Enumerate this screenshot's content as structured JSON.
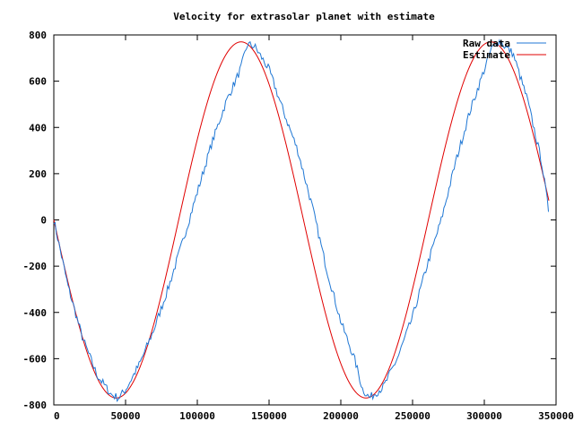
{
  "chart_data": {
    "type": "line",
    "title": "Velocity for extrasolar planet with estimate",
    "xlabel": "",
    "ylabel": "",
    "xlim": [
      0,
      350000
    ],
    "ylim": [
      -800,
      800
    ],
    "x_ticks": [
      0,
      50000,
      100000,
      150000,
      200000,
      250000,
      300000,
      350000
    ],
    "y_ticks": [
      -800,
      -600,
      -400,
      -200,
      0,
      200,
      400,
      600,
      800
    ],
    "grid": false,
    "legend_position": "top-right",
    "series": [
      {
        "name": "Raw data",
        "color": "#1f77d4",
        "x": [
          0,
          10000,
          20000,
          30000,
          40000,
          45000,
          50000,
          60000,
          70000,
          80000,
          90000,
          100000,
          110000,
          120000,
          130000,
          135000,
          140000,
          150000,
          160000,
          170000,
          180000,
          190000,
          200000,
          210000,
          215000,
          220000,
          230000,
          240000,
          250000,
          260000,
          270000,
          280000,
          290000,
          300000,
          305000,
          310000,
          320000,
          330000,
          340000,
          345000
        ],
        "values": [
          0,
          -290,
          -510,
          -670,
          -755,
          -770,
          -735,
          -620,
          -470,
          -290,
          -90,
          120,
          330,
          510,
          650,
          760,
          750,
          650,
          470,
          300,
          60,
          -210,
          -440,
          -610,
          -730,
          -770,
          -720,
          -590,
          -420,
          -200,
          0,
          250,
          470,
          650,
          740,
          775,
          720,
          520,
          250,
          30
        ]
      },
      {
        "name": "Estimate",
        "color": "#e00000",
        "function": {
          "amplitude": 770,
          "period": 174000,
          "phase_zero_at": 0
        }
      }
    ]
  }
}
